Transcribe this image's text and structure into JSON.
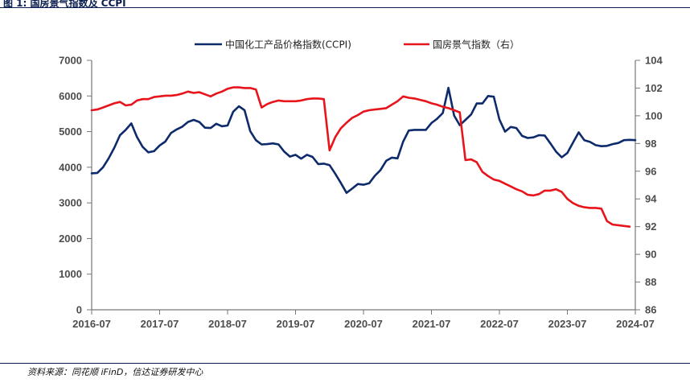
{
  "figure_title": "图 1:  国房景气指数及 CCPI",
  "source_note": "资料来源：同花顺 iFinD，信达证券研发中心",
  "chart_data": {
    "type": "line",
    "x_tick_labels": [
      "2016-07",
      "2017-07",
      "2018-07",
      "2019-07",
      "2020-07",
      "2021-07",
      "2022-07",
      "2023-07",
      "2024-07"
    ],
    "y_left": {
      "ylim": [
        0,
        7000
      ],
      "ticks": [
        0,
        1000,
        2000,
        3000,
        4000,
        5000,
        6000,
        7000
      ]
    },
    "y_right": {
      "ylim": [
        86,
        104
      ],
      "ticks": [
        86,
        88,
        90,
        92,
        94,
        96,
        98,
        100,
        102,
        104
      ]
    },
    "legend_position": "top-center",
    "grid": false,
    "series": [
      {
        "name": "中国化工产品价格指数(CCPI)",
        "axis": "left",
        "color": "#0d2a6b",
        "x": [
          "2016-07",
          "2016-08",
          "2016-09",
          "2016-10",
          "2016-11",
          "2016-12",
          "2017-01",
          "2017-02",
          "2017-03",
          "2017-04",
          "2017-05",
          "2017-06",
          "2017-07",
          "2017-08",
          "2017-09",
          "2017-10",
          "2017-11",
          "2017-12",
          "2018-01",
          "2018-02",
          "2018-03",
          "2018-04",
          "2018-05",
          "2018-06",
          "2018-07",
          "2018-08",
          "2018-09",
          "2018-10",
          "2018-11",
          "2018-12",
          "2019-01",
          "2019-02",
          "2019-03",
          "2019-04",
          "2019-05",
          "2019-06",
          "2019-07",
          "2019-08",
          "2019-09",
          "2019-10",
          "2019-11",
          "2019-12",
          "2020-01",
          "2020-02",
          "2020-03",
          "2020-04",
          "2020-05",
          "2020-06",
          "2020-07",
          "2020-08",
          "2020-09",
          "2020-10",
          "2020-11",
          "2020-12",
          "2021-01",
          "2021-02",
          "2021-03",
          "2021-04",
          "2021-05",
          "2021-06",
          "2021-07",
          "2021-08",
          "2021-09",
          "2021-10",
          "2021-11",
          "2021-12",
          "2022-01",
          "2022-02",
          "2022-03",
          "2022-04",
          "2022-05",
          "2022-06",
          "2022-07",
          "2022-08",
          "2022-09",
          "2022-10",
          "2022-11",
          "2022-12",
          "2023-01",
          "2023-02",
          "2023-03",
          "2023-04",
          "2023-05",
          "2023-06",
          "2023-07",
          "2023-08",
          "2023-09",
          "2023-10",
          "2023-11",
          "2023-12",
          "2024-01",
          "2024-02",
          "2024-03",
          "2024-04",
          "2024-05",
          "2024-06",
          "2024-07"
        ],
        "values": [
          3830,
          3840,
          4000,
          4250,
          4550,
          4900,
          5050,
          5230,
          4850,
          4570,
          4420,
          4450,
          4610,
          4720,
          4960,
          5060,
          5140,
          5270,
          5330,
          5270,
          5110,
          5100,
          5220,
          5150,
          5170,
          5560,
          5710,
          5600,
          5010,
          4760,
          4640,
          4650,
          4670,
          4640,
          4440,
          4300,
          4350,
          4240,
          4350,
          4290,
          4090,
          4100,
          4060,
          3820,
          3560,
          3280,
          3400,
          3530,
          3510,
          3550,
          3760,
          3920,
          4180,
          4270,
          4250,
          4720,
          5030,
          5050,
          5050,
          5050,
          5240,
          5360,
          5520,
          6230,
          5450,
          5180,
          5330,
          5480,
          5790,
          5790,
          6000,
          5980,
          5340,
          5000,
          5130,
          5100,
          4880,
          4820,
          4840,
          4900,
          4890,
          4670,
          4440,
          4280,
          4400,
          4690,
          4980,
          4760,
          4710,
          4620,
          4590,
          4600,
          4650,
          4680,
          4760,
          4770,
          4760
        ]
      },
      {
        "name": "国房景气指数（右）",
        "axis": "right",
        "color": "#e8141b",
        "x": [
          "2016-07",
          "2016-08",
          "2016-09",
          "2016-10",
          "2016-11",
          "2016-12",
          "2017-01",
          "2017-02",
          "2017-03",
          "2017-04",
          "2017-05",
          "2017-06",
          "2017-07",
          "2017-08",
          "2017-09",
          "2017-10",
          "2017-11",
          "2017-12",
          "2018-01",
          "2018-02",
          "2018-03",
          "2018-04",
          "2018-05",
          "2018-06",
          "2018-07",
          "2018-08",
          "2018-09",
          "2018-10",
          "2018-11",
          "2018-12",
          "2019-01",
          "2019-02",
          "2019-03",
          "2019-04",
          "2019-05",
          "2019-06",
          "2019-07",
          "2019-08",
          "2019-09",
          "2019-10",
          "2019-11",
          "2019-12",
          "2020-01",
          "2020-02",
          "2020-03",
          "2020-04",
          "2020-05",
          "2020-06",
          "2020-07",
          "2020-08",
          "2020-09",
          "2020-10",
          "2020-11",
          "2020-12",
          "2021-01",
          "2021-02",
          "2021-03",
          "2021-04",
          "2021-05",
          "2021-06",
          "2021-07",
          "2021-08",
          "2021-09",
          "2021-10",
          "2021-11",
          "2021-12",
          "2022-01",
          "2022-02",
          "2022-03",
          "2022-04",
          "2022-05",
          "2022-06",
          "2022-07",
          "2022-08",
          "2022-09",
          "2022-10",
          "2022-11",
          "2022-12",
          "2023-01",
          "2023-02",
          "2023-03",
          "2023-04",
          "2023-05",
          "2023-06",
          "2023-07",
          "2023-08",
          "2023-09",
          "2023-10",
          "2023-11",
          "2023-12",
          "2024-01",
          "2024-02",
          "2024-03",
          "2024-04",
          "2024-05",
          "2024-06"
        ],
        "values": [
          100.4,
          100.45,
          100.6,
          100.75,
          100.9,
          101.0,
          100.75,
          100.8,
          101.1,
          101.2,
          101.2,
          101.35,
          101.4,
          101.45,
          101.45,
          101.5,
          101.6,
          101.75,
          101.65,
          101.7,
          101.55,
          101.4,
          101.6,
          101.75,
          101.95,
          102.05,
          102.05,
          102.0,
          102.0,
          101.9,
          100.6,
          100.85,
          101.0,
          101.1,
          101.05,
          101.05,
          101.05,
          101.1,
          101.2,
          101.25,
          101.25,
          101.2,
          97.5,
          98.45,
          99.1,
          99.5,
          99.85,
          100.05,
          100.3,
          100.4,
          100.45,
          100.5,
          100.55,
          100.8,
          101.05,
          101.4,
          101.3,
          101.25,
          101.15,
          101.05,
          100.9,
          100.8,
          100.65,
          100.55,
          100.4,
          100.25,
          96.8,
          96.85,
          96.65,
          95.95,
          95.65,
          95.4,
          95.3,
          95.1,
          94.9,
          94.7,
          94.55,
          94.3,
          94.25,
          94.35,
          94.6,
          94.6,
          94.7,
          94.5,
          94.0,
          93.7,
          93.5,
          93.4,
          93.35,
          93.35,
          93.3,
          92.4,
          92.15,
          92.1,
          92.05,
          92.0
        ]
      }
    ]
  }
}
